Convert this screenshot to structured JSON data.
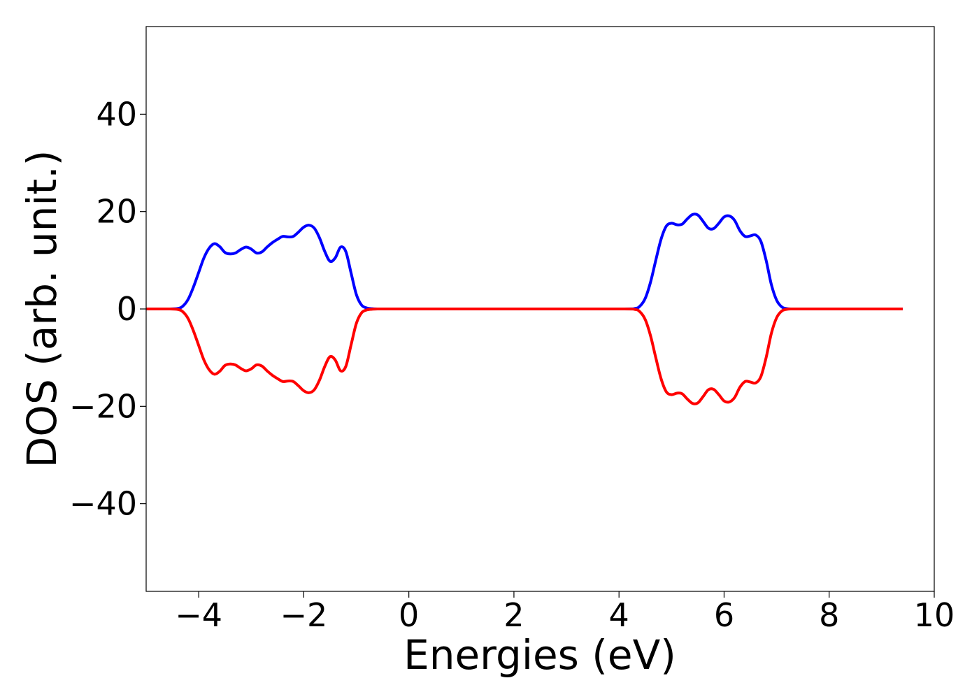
{
  "chart_data": {
    "type": "line",
    "title": "",
    "xlabel": "Energies (eV)",
    "ylabel": "DOS (arb. unit.)",
    "xlim": [
      -5,
      10
    ],
    "ylim": [
      -58,
      58
    ],
    "xticks": [
      -4,
      -2,
      0,
      2,
      4,
      6,
      8,
      10
    ],
    "xtick_labels": [
      "−4",
      "−2",
      "0",
      "2",
      "4",
      "6",
      "8",
      "10"
    ],
    "yticks": [
      -40,
      -20,
      0,
      20,
      40
    ],
    "ytick_labels": [
      "−40",
      "−20",
      "0",
      "20",
      "40"
    ],
    "grid": false,
    "series": [
      {
        "color": "#0000ff",
        "x": [
          -5.0,
          -4.6,
          -4.4,
          -4.3,
          -4.2,
          -4.1,
          -4.0,
          -3.9,
          -3.8,
          -3.7,
          -3.6,
          -3.5,
          -3.4,
          -3.3,
          -3.2,
          -3.1,
          -3.0,
          -2.9,
          -2.8,
          -2.7,
          -2.6,
          -2.5,
          -2.4,
          -2.3,
          -2.2,
          -2.1,
          -2.0,
          -1.9,
          -1.8,
          -1.7,
          -1.6,
          -1.5,
          -1.4,
          -1.3,
          -1.2,
          -1.1,
          -1.0,
          -0.9,
          -0.8,
          -0.7,
          -0.6,
          -0.5,
          0.0,
          2.0,
          4.0,
          4.3,
          4.4,
          4.5,
          4.6,
          4.7,
          4.8,
          4.9,
          5.0,
          5.1,
          5.2,
          5.3,
          5.4,
          5.5,
          5.6,
          5.7,
          5.8,
          5.9,
          6.0,
          6.1,
          6.2,
          6.3,
          6.4,
          6.5,
          6.6,
          6.7,
          6.8,
          6.9,
          7.0,
          7.1,
          7.2,
          7.3,
          7.4,
          7.5,
          8.0,
          9.4
        ],
        "y": [
          0,
          0,
          0.1,
          0.6,
          2.0,
          4.5,
          7.5,
          10.5,
          12.5,
          13.4,
          12.8,
          11.6,
          11.3,
          11.5,
          12.2,
          12.7,
          12.3,
          11.5,
          11.7,
          12.7,
          13.6,
          14.3,
          14.9,
          14.8,
          14.9,
          15.8,
          16.8,
          17.2,
          16.6,
          14.6,
          11.8,
          9.8,
          10.5,
          12.7,
          11.8,
          7.4,
          3.0,
          0.8,
          0.2,
          0.05,
          0,
          0,
          0,
          0,
          0,
          0.1,
          0.6,
          2.2,
          5.5,
          10.0,
          14.3,
          17.0,
          17.6,
          17.3,
          17.4,
          18.5,
          19.4,
          19.3,
          18.0,
          16.6,
          16.5,
          17.6,
          18.9,
          19.1,
          18.2,
          16.1,
          14.9,
          15.0,
          15.2,
          13.9,
          10.0,
          5.0,
          1.8,
          0.4,
          0.05,
          0,
          0,
          0,
          0,
          0
        ]
      },
      {
        "color": "#ff0000",
        "x": [
          -5.0,
          -4.6,
          -4.4,
          -4.3,
          -4.2,
          -4.1,
          -4.0,
          -3.9,
          -3.8,
          -3.7,
          -3.6,
          -3.5,
          -3.4,
          -3.3,
          -3.2,
          -3.1,
          -3.0,
          -2.9,
          -2.8,
          -2.7,
          -2.6,
          -2.5,
          -2.4,
          -2.3,
          -2.2,
          -2.1,
          -2.0,
          -1.9,
          -1.8,
          -1.7,
          -1.6,
          -1.5,
          -1.4,
          -1.3,
          -1.2,
          -1.1,
          -1.0,
          -0.9,
          -0.8,
          -0.7,
          -0.6,
          -0.5,
          0.0,
          2.0,
          4.0,
          4.3,
          4.4,
          4.5,
          4.6,
          4.7,
          4.8,
          4.9,
          5.0,
          5.1,
          5.2,
          5.3,
          5.4,
          5.5,
          5.6,
          5.7,
          5.8,
          5.9,
          6.0,
          6.1,
          6.2,
          6.3,
          6.4,
          6.5,
          6.6,
          6.7,
          6.8,
          6.9,
          7.0,
          7.1,
          7.2,
          7.3,
          7.4,
          7.5,
          8.0,
          9.4
        ],
        "y": [
          0,
          0,
          -0.1,
          -0.6,
          -2.0,
          -4.5,
          -7.5,
          -10.5,
          -12.5,
          -13.4,
          -12.8,
          -11.6,
          -11.3,
          -11.5,
          -12.2,
          -12.7,
          -12.3,
          -11.5,
          -11.7,
          -12.7,
          -13.6,
          -14.3,
          -14.9,
          -14.8,
          -14.9,
          -15.8,
          -16.8,
          -17.2,
          -16.6,
          -14.6,
          -11.8,
          -9.8,
          -10.5,
          -12.7,
          -11.8,
          -7.4,
          -3.0,
          -0.8,
          -0.2,
          -0.05,
          0,
          0,
          0,
          0,
          0,
          -0.1,
          -0.6,
          -2.2,
          -5.5,
          -10.0,
          -14.3,
          -17.0,
          -17.6,
          -17.3,
          -17.4,
          -18.5,
          -19.4,
          -19.3,
          -18.0,
          -16.6,
          -16.5,
          -17.6,
          -18.9,
          -19.1,
          -18.2,
          -16.1,
          -14.9,
          -15.0,
          -15.2,
          -13.9,
          -10.0,
          -5.0,
          -1.8,
          -0.4,
          -0.05,
          0,
          0,
          0,
          0,
          0
        ]
      }
    ]
  }
}
